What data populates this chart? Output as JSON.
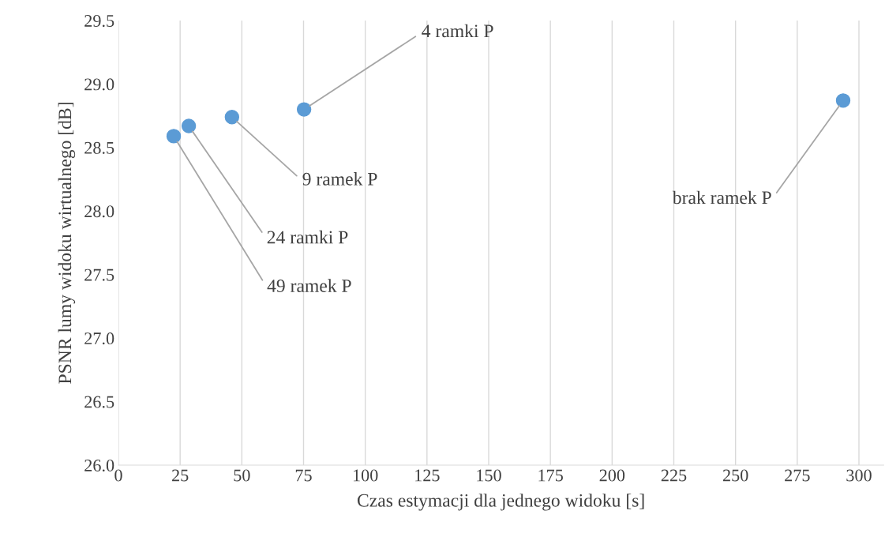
{
  "chart_data": {
    "type": "scatter",
    "xlabel": "Czas estymacji dla jednego widoku [s]",
    "ylabel": "PSNR lumy widoku wirtualnego [dB]",
    "x": [
      22.4,
      28.5,
      46,
      75.2,
      293.6
    ],
    "series": [
      {
        "color": "#5b9bd5",
        "values": [
          28.59,
          28.67,
          28.74,
          28.8,
          28.87
        ]
      }
    ],
    "xlim": [
      0,
      310
    ],
    "ylim": [
      26.0,
      29.5
    ],
    "xticks": [
      0,
      25,
      50,
      75,
      100,
      125,
      150,
      175,
      200,
      225,
      250,
      275,
      300
    ],
    "yticks": [
      {
        "value": 26.0,
        "label": "26.0"
      },
      {
        "value": 26.5,
        "label": "26.5"
      },
      {
        "value": 27.0,
        "label": "27.0"
      },
      {
        "value": 27.5,
        "label": "27.5"
      },
      {
        "value": 28.0,
        "label": "28.0"
      },
      {
        "value": 28.5,
        "label": "28.5"
      },
      {
        "value": 29.0,
        "label": "29.0"
      },
      {
        "value": 29.5,
        "label": "29.5"
      }
    ],
    "grid": "x",
    "marker": "circle",
    "annotations": [
      {
        "text": "49 ramek P",
        "x": 22.4,
        "y": 28.59
      },
      {
        "text": "24 ramki P",
        "x": 28.5,
        "y": 28.67
      },
      {
        "text": "9 ramek P",
        "x": 46,
        "y": 28.74
      },
      {
        "text": "4 ramki P",
        "x": 75.2,
        "y": 28.8
      },
      {
        "text": "brak ramek P",
        "x": 293.6,
        "y": 28.87
      }
    ]
  }
}
